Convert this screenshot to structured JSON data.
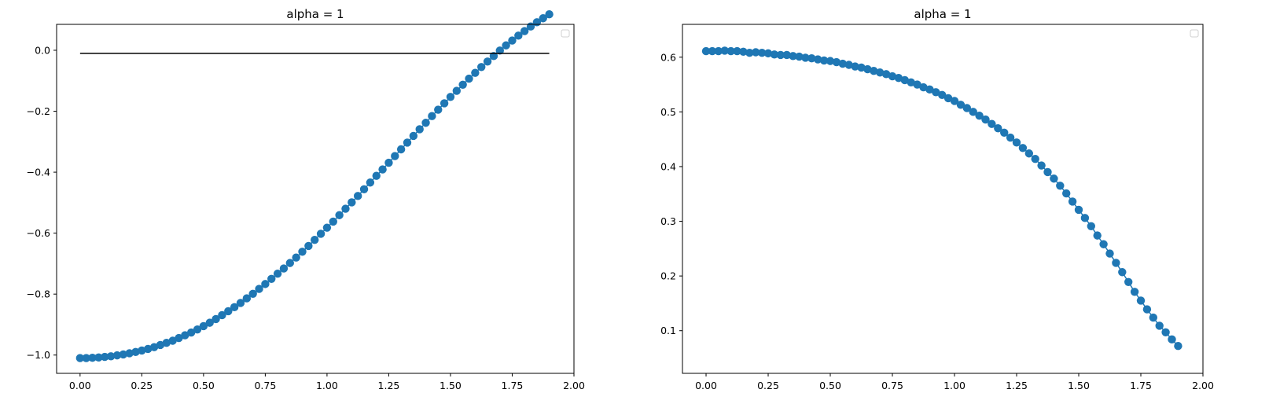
{
  "colors": {
    "series": "#1f77b4",
    "reference_line": "#000000",
    "axes": "#000000",
    "background": "#ffffff"
  },
  "chart_data": [
    {
      "type": "line",
      "title": "alpha = 1",
      "xlabel": "",
      "ylabel": "",
      "xlim": [
        -0.095,
        2.0
      ],
      "ylim": [
        -1.06,
        0.085
      ],
      "xticks": [
        0.0,
        0.25,
        0.5,
        0.75,
        1.0,
        1.25,
        1.5,
        1.75,
        2.0
      ],
      "xtick_labels": [
        "0.00",
        "0.25",
        "0.50",
        "0.75",
        "1.00",
        "1.25",
        "1.50",
        "1.75",
        "2.00"
      ],
      "yticks": [
        -1.0,
        -0.8,
        -0.6,
        -0.4,
        -0.2,
        0.0
      ],
      "ytick_labels": [
        "−1.0",
        "−0.8",
        "−0.6",
        "−0.4",
        "−0.2",
        "0.0"
      ],
      "grid": false,
      "legend": "top-right, empty",
      "markers": "circle",
      "series": [
        {
          "x": [
            0.0,
            0.025,
            0.05,
            0.075,
            0.1,
            0.125,
            0.15,
            0.175,
            0.2,
            0.225,
            0.25,
            0.275,
            0.3,
            0.325,
            0.35,
            0.375,
            0.4,
            0.425,
            0.45,
            0.475,
            0.5,
            0.525,
            0.55,
            0.575,
            0.6,
            0.625,
            0.65,
            0.675,
            0.7,
            0.725,
            0.75,
            0.775,
            0.8,
            0.825,
            0.85,
            0.875,
            0.9,
            0.925,
            0.95,
            0.975,
            1.0,
            1.025,
            1.05,
            1.075,
            1.1,
            1.125,
            1.15,
            1.175,
            1.2,
            1.225,
            1.25,
            1.275,
            1.3,
            1.325,
            1.35,
            1.375,
            1.4,
            1.425,
            1.45,
            1.475,
            1.5,
            1.525,
            1.55,
            1.575,
            1.6,
            1.625,
            1.65,
            1.675,
            1.7,
            1.725,
            1.75,
            1.775,
            1.8,
            1.825,
            1.85,
            1.875,
            1.9
          ],
          "y": [
            -1.01,
            -1.01,
            -1.009,
            -1.008,
            -1.006,
            -1.004,
            -1.001,
            -0.998,
            -0.994,
            -0.99,
            -0.985,
            -0.98,
            -0.974,
            -0.967,
            -0.96,
            -0.953,
            -0.944,
            -0.935,
            -0.926,
            -0.916,
            -0.905,
            -0.894,
            -0.882,
            -0.869,
            -0.856,
            -0.843,
            -0.829,
            -0.814,
            -0.799,
            -0.783,
            -0.767,
            -0.75,
            -0.733,
            -0.716,
            -0.698,
            -0.68,
            -0.661,
            -0.642,
            -0.622,
            -0.602,
            -0.582,
            -0.562,
            -0.541,
            -0.52,
            -0.499,
            -0.478,
            -0.456,
            -0.434,
            -0.412,
            -0.391,
            -0.369,
            -0.347,
            -0.325,
            -0.303,
            -0.281,
            -0.259,
            -0.238,
            -0.216,
            -0.195,
            -0.174,
            -0.153,
            -0.133,
            -0.113,
            -0.093,
            -0.074,
            -0.055,
            -0.037,
            -0.019,
            -0.001,
            0.016,
            0.032,
            0.048,
            0.063,
            0.078,
            0.092,
            0.105,
            0.118
          ]
        },
        {
          "x": [
            0.0,
            1.9
          ],
          "y": [
            -0.01,
            -0.01
          ]
        }
      ]
    },
    {
      "type": "line",
      "title": "alpha = 1",
      "xlabel": "",
      "ylabel": "",
      "xlim": [
        -0.095,
        2.0
      ],
      "ylim": [
        0.022,
        0.66
      ],
      "xticks": [
        0.0,
        0.25,
        0.5,
        0.75,
        1.0,
        1.25,
        1.5,
        1.75,
        2.0
      ],
      "xtick_labels": [
        "0.00",
        "0.25",
        "0.50",
        "0.75",
        "1.00",
        "1.25",
        "1.50",
        "1.75",
        "2.00"
      ],
      "yticks": [
        0.1,
        0.2,
        0.3,
        0.4,
        0.5,
        0.6
      ],
      "ytick_labels": [
        "0.1",
        "0.2",
        "0.3",
        "0.4",
        "0.5",
        "0.6"
      ],
      "grid": false,
      "legend": "top-right, empty",
      "markers": "circle",
      "series": [
        {
          "x": [
            0.0,
            0.025,
            0.05,
            0.075,
            0.1,
            0.125,
            0.15,
            0.175,
            0.2,
            0.225,
            0.25,
            0.275,
            0.3,
            0.325,
            0.35,
            0.375,
            0.4,
            0.425,
            0.45,
            0.475,
            0.5,
            0.525,
            0.55,
            0.575,
            0.6,
            0.625,
            0.65,
            0.675,
            0.7,
            0.725,
            0.75,
            0.775,
            0.8,
            0.825,
            0.85,
            0.875,
            0.9,
            0.925,
            0.95,
            0.975,
            1.0,
            1.025,
            1.05,
            1.075,
            1.1,
            1.125,
            1.15,
            1.175,
            1.2,
            1.225,
            1.25,
            1.275,
            1.3,
            1.325,
            1.35,
            1.375,
            1.4,
            1.425,
            1.45,
            1.475,
            1.5,
            1.525,
            1.55,
            1.575,
            1.6,
            1.625,
            1.65,
            1.675,
            1.7,
            1.725,
            1.75,
            1.775,
            1.8,
            1.825,
            1.85,
            1.875,
            1.9
          ],
          "y": [
            0.611,
            0.611,
            0.611,
            0.612,
            0.611,
            0.611,
            0.61,
            0.608,
            0.609,
            0.608,
            0.607,
            0.605,
            0.604,
            0.604,
            0.602,
            0.601,
            0.599,
            0.598,
            0.596,
            0.594,
            0.593,
            0.591,
            0.588,
            0.586,
            0.583,
            0.581,
            0.578,
            0.575,
            0.572,
            0.569,
            0.565,
            0.562,
            0.558,
            0.554,
            0.55,
            0.545,
            0.541,
            0.536,
            0.531,
            0.525,
            0.52,
            0.513,
            0.507,
            0.5,
            0.493,
            0.486,
            0.478,
            0.47,
            0.462,
            0.453,
            0.444,
            0.434,
            0.424,
            0.414,
            0.402,
            0.39,
            0.378,
            0.365,
            0.351,
            0.336,
            0.321,
            0.306,
            0.291,
            0.274,
            0.258,
            0.241,
            0.224,
            0.207,
            0.189,
            0.171,
            0.155,
            0.139,
            0.124,
            0.109,
            0.097,
            0.084,
            0.072
          ]
        }
      ]
    }
  ]
}
